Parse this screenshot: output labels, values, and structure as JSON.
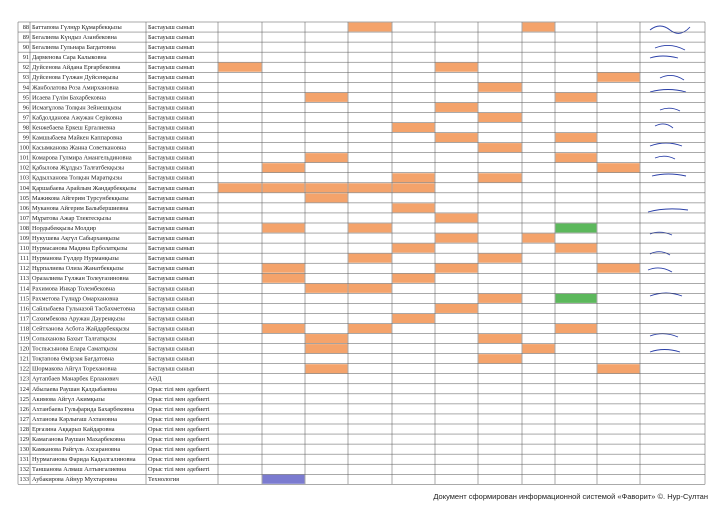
{
  "table": {
    "rows": [
      {
        "n": "88",
        "name": "Баттапова Гүлнұр Құмарбекқызы",
        "group": "Бастауыш сынып",
        "shaded": [
          [
            3,
            "#f4a36b"
          ],
          [
            7,
            "#f4a36b"
          ]
        ]
      },
      {
        "n": "89",
        "name": "Бегалиева Күндыз Азанбековна",
        "group": "Бастауыш сынып",
        "shaded": []
      },
      {
        "n": "90",
        "name": "Бегалиева Гульнара Багдатовна",
        "group": "Бастауыш сынып",
        "shaded": []
      },
      {
        "n": "91",
        "name": "Дарменова Сара Калыковна",
        "group": "Бастауыш сынып",
        "shaded": []
      },
      {
        "n": "92",
        "name": "Дуйсенова Айдана Ерғарбековна",
        "group": "Бастауыш сынып",
        "shaded": [
          [
            0,
            "#f4a36b"
          ],
          [
            5,
            "#f4a36b"
          ]
        ]
      },
      {
        "n": "93",
        "name": "Дуйсенова Гүлжан Дуйсенқызы",
        "group": "Бастауыш сынып",
        "shaded": [
          [
            9,
            "#f4a36b"
          ]
        ]
      },
      {
        "n": "94",
        "name": "Жанболатова Роза Амирхановна",
        "group": "Бастауыш сынып",
        "shaded": [
          [
            6,
            "#f4a36b"
          ]
        ]
      },
      {
        "n": "95",
        "name": "Исаева Гүлім Бахарбековна",
        "group": "Бастауыш сынып",
        "shaded": [
          [
            2,
            "#f4a36b"
          ],
          [
            8,
            "#f4a36b"
          ]
        ]
      },
      {
        "n": "96",
        "name": "Исмағұлова Толқын Зейнешқызы",
        "group": "Бастауыш сынып",
        "shaded": [
          [
            5,
            "#f4a36b"
          ]
        ]
      },
      {
        "n": "97",
        "name": "Кабдолданова Ажужан Серіковна",
        "group": "Бастауыш сынып",
        "shaded": [
          [
            6,
            "#f4a36b"
          ]
        ]
      },
      {
        "n": "98",
        "name": "Кенжебаева Еркеш Ергалиевна",
        "group": "Бастауыш сынып",
        "shaded": [
          [
            4,
            "#f4a36b"
          ]
        ]
      },
      {
        "n": "99",
        "name": "Камшыбаева Майкен Каппаровна",
        "group": "Бастауыш сынып",
        "shaded": [
          [
            5,
            "#f4a36b"
          ],
          [
            8,
            "#f4a36b"
          ]
        ]
      },
      {
        "n": "100",
        "name": "Касымканова Жанна Советкановна",
        "group": "Бастауыш сынып",
        "shaded": [
          [
            6,
            "#f4a36b"
          ]
        ]
      },
      {
        "n": "101",
        "name": "Комарова Гулмира Амангельдиновна",
        "group": "Бастауыш сынып",
        "shaded": [
          [
            2,
            "#f4a36b"
          ],
          [
            8,
            "#f4a36b"
          ]
        ]
      },
      {
        "n": "102",
        "name": "Қабылова Жұлдыз Талғатбекқызы",
        "group": "Бастауыш сынып",
        "shaded": [
          [
            1,
            "#f4a36b"
          ],
          [
            9,
            "#f4a36b"
          ]
        ]
      },
      {
        "n": "103",
        "name": "Қадылханова Толқын Маратқызы",
        "group": "Бастауыш сынып",
        "shaded": [
          [
            4,
            "#f4a36b"
          ],
          [
            6,
            "#f4a36b"
          ]
        ]
      },
      {
        "n": "104",
        "name": "Қаршабаева Арайлым Жандарбекқызы",
        "group": "Бастауыш сынып",
        "shaded": [
          [
            0,
            "#f4a36b"
          ],
          [
            1,
            "#f4a36b"
          ],
          [
            2,
            "#f4a36b"
          ],
          [
            3,
            "#f4a36b"
          ],
          [
            4,
            "#f4a36b"
          ]
        ]
      },
      {
        "n": "105",
        "name": "Мажикова Айгерим Турсунбекқызы",
        "group": "Бастауыш сынып",
        "shaded": [
          [
            2,
            "#f4a36b"
          ]
        ]
      },
      {
        "n": "106",
        "name": "Муканова Айгерим Балыбершиевна",
        "group": "Бастауыш сынып",
        "shaded": [
          [
            4,
            "#f4a36b"
          ]
        ]
      },
      {
        "n": "107",
        "name": "Мұратова Ажар Тлектесқызы",
        "group": "Бастауыш сынып",
        "shaded": [
          [
            5,
            "#f4a36b"
          ]
        ]
      },
      {
        "n": "108",
        "name": "Нордыбекқызы Молдир",
        "group": "Бастауыш сынып",
        "shaded": [
          [
            1,
            "#f4a36b"
          ],
          [
            3,
            "#f4a36b"
          ],
          [
            8,
            "#5cb85c"
          ]
        ]
      },
      {
        "n": "109",
        "name": "Нукушева Ақгүл Сабырханқызы",
        "group": "Бастауыш сынып",
        "shaded": [
          [
            5,
            "#f4a36b"
          ],
          [
            7,
            "#f4a36b"
          ]
        ]
      },
      {
        "n": "110",
        "name": "Нурмасанова Мадина Ерболатқызы",
        "group": "Бастауыш сынып",
        "shaded": [
          [
            4,
            "#f4a36b"
          ],
          [
            8,
            "#f4a36b"
          ]
        ]
      },
      {
        "n": "111",
        "name": "Нурманова Гүлдер Нурманқызы",
        "group": "Бастауыш сынып",
        "shaded": [
          [
            3,
            "#f4a36b"
          ],
          [
            6,
            "#f4a36b"
          ]
        ]
      },
      {
        "n": "112",
        "name": "Нұрпалиева Олиза Жанатбекқызы",
        "group": "Бастауыш сынып",
        "shaded": [
          [
            1,
            "#f4a36b"
          ],
          [
            5,
            "#f4a36b"
          ],
          [
            9,
            "#f4a36b"
          ]
        ]
      },
      {
        "n": "113",
        "name": "Оразалиева Гүлжан Толеуғазиновна",
        "group": "Бастауыш сынып",
        "shaded": [
          [
            1,
            "#f4a36b"
          ],
          [
            4,
            "#f4a36b"
          ]
        ]
      },
      {
        "n": "114",
        "name": "Рахимова Инкар Толембековна",
        "group": "Бастауыш сынып",
        "shaded": [
          [
            2,
            "#f4a36b"
          ],
          [
            3,
            "#f4a36b"
          ]
        ]
      },
      {
        "n": "115",
        "name": "Рахметова Гүлнұр Омархановна",
        "group": "Бастауыш сынып",
        "shaded": [
          [
            6,
            "#f4a36b"
          ],
          [
            8,
            "#5cb85c"
          ]
        ]
      },
      {
        "n": "116",
        "name": "Сайлыбаева Гульназой Тасбахметовна",
        "group": "Бастауыш сынып",
        "shaded": [
          [
            5,
            "#f4a36b"
          ]
        ]
      },
      {
        "n": "117",
        "name": "Сахимбекова Аружан Дәуренқызы",
        "group": "Бастауыш сынып",
        "shaded": [
          [
            4,
            "#f4a36b"
          ]
        ]
      },
      {
        "n": "118",
        "name": "Сейтханова Асбота Жайдарбекқызы",
        "group": "Бастауыш сынып",
        "shaded": [
          [
            1,
            "#f4a36b"
          ],
          [
            3,
            "#f4a36b"
          ],
          [
            8,
            "#f4a36b"
          ]
        ]
      },
      {
        "n": "119",
        "name": "Сопыханова Бахыт Талғатқызы",
        "group": "Бастауыш сынып",
        "shaded": [
          [
            2,
            "#f4a36b"
          ],
          [
            6,
            "#f4a36b"
          ]
        ]
      },
      {
        "n": "120",
        "name": "Тоспысынова Елара Саматқызы",
        "group": "Бастауыш сынып",
        "shaded": [
          [
            2,
            "#f4a36b"
          ],
          [
            7,
            "#f4a36b"
          ]
        ]
      },
      {
        "n": "121",
        "name": "Тоқтапова Өмірзая Бағдатовна",
        "group": "Бастауыш сынып",
        "shaded": [
          [
            6,
            "#f4a36b"
          ]
        ]
      },
      {
        "n": "122",
        "name": "Шормакова Айгүл Торехановна",
        "group": "Бастауыш сынып",
        "shaded": [
          [
            2,
            "#f4a36b"
          ],
          [
            9,
            "#f4a36b"
          ]
        ]
      },
      {
        "n": "123",
        "name": "Аутапбаев Манарбек Ерланович",
        "group": "АӘД",
        "shaded": []
      },
      {
        "n": "124",
        "name": "Абылаева Раушан Қалдыбаевна",
        "group": "Орыс тілі мен әдебиеті",
        "shaded": []
      },
      {
        "n": "125",
        "name": "Акимова Айгүл Акимқызы",
        "group": "Орыс тілі мен әдебиеті",
        "shaded": []
      },
      {
        "n": "126",
        "name": "Ахтанбаева Гульфарида Бахарбековна",
        "group": "Орыс тілі мен әдебиеті",
        "shaded": []
      },
      {
        "n": "127",
        "name": "Ахтанова Кәрлығаш Ахтановна",
        "group": "Орыс тілі мен әдебиеті",
        "shaded": []
      },
      {
        "n": "128",
        "name": "Ерғазина Аққарыз Кайдаровна",
        "group": "Орыс тілі мен әдебиеті",
        "shaded": []
      },
      {
        "n": "129",
        "name": "Камаганова Раушан Махарбековна",
        "group": "Орыс тілі мен әдебиеті",
        "shaded": []
      },
      {
        "n": "130",
        "name": "Камканова Райгүль Ахсарановна",
        "group": "Орыс тілі мен әдебиеті",
        "shaded": []
      },
      {
        "n": "131",
        "name": "Нурмаганова Фарида Кадылгалиновна",
        "group": "Орыс тілі мен әдебиеті",
        "shaded": []
      },
      {
        "n": "132",
        "name": "Таншанова Алмаш Алтынгалиевна",
        "group": "Орыс тілі мен әдебиеті",
        "shaded": []
      },
      {
        "n": "133",
        "name": "Аубакирова Айнур Мухтаровна",
        "group": "Технология",
        "shaded": [
          [
            1,
            "#7b7bd0"
          ]
        ]
      }
    ]
  },
  "footer": "Документ сформирован информационной системой «Фаворит» ©. Нур-Султан"
}
